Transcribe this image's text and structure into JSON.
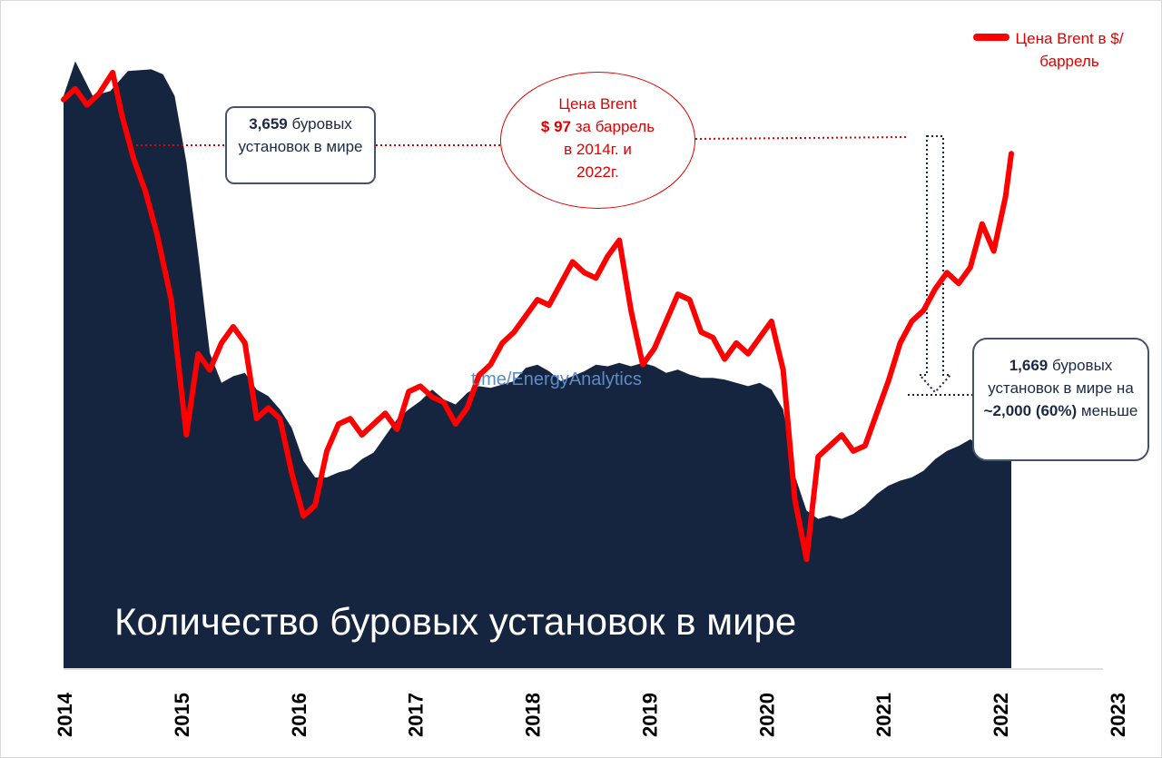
{
  "chart_data": {
    "type": "area+line",
    "title": "Количество буровых установок в мире",
    "watermark": "t.me/EnergyAnalytics",
    "x_ticks": [
      "2014",
      "2015",
      "2016",
      "2017",
      "2018",
      "2019",
      "2020",
      "2021",
      "2022",
      "2023"
    ],
    "xlim": [
      2014.0,
      2023.0
    ],
    "legend": {
      "label": "Цена Brent в $/баррель",
      "position": "top-right"
    },
    "series": [
      {
        "kind": "area",
        "color": "#15243f",
        "points": [
          [
            2014.0,
            3450
          ],
          [
            2014.1,
            3659
          ],
          [
            2014.25,
            3450
          ],
          [
            2014.4,
            3480
          ],
          [
            2014.55,
            3600
          ],
          [
            2014.75,
            3610
          ],
          [
            2014.85,
            3580
          ],
          [
            2014.95,
            3450
          ],
          [
            2015.05,
            3050
          ],
          [
            2015.15,
            2500
          ],
          [
            2015.25,
            1900
          ],
          [
            2015.35,
            1720
          ],
          [
            2015.45,
            1760
          ],
          [
            2015.55,
            1780
          ],
          [
            2015.65,
            1680
          ],
          [
            2015.75,
            1640
          ],
          [
            2015.85,
            1560
          ],
          [
            2015.95,
            1450
          ],
          [
            2016.05,
            1250
          ],
          [
            2016.15,
            1150
          ],
          [
            2016.25,
            1150
          ],
          [
            2016.35,
            1180
          ],
          [
            2016.45,
            1200
          ],
          [
            2016.55,
            1260
          ],
          [
            2016.65,
            1300
          ],
          [
            2016.75,
            1400
          ],
          [
            2016.85,
            1500
          ],
          [
            2016.95,
            1560
          ],
          [
            2017.05,
            1610
          ],
          [
            2017.15,
            1680
          ],
          [
            2017.25,
            1620
          ],
          [
            2017.35,
            1590
          ],
          [
            2017.45,
            1660
          ],
          [
            2017.55,
            1700
          ],
          [
            2017.65,
            1690
          ],
          [
            2017.75,
            1710
          ],
          [
            2017.85,
            1730
          ],
          [
            2017.95,
            1810
          ],
          [
            2018.05,
            1830
          ],
          [
            2018.15,
            1790
          ],
          [
            2018.25,
            1730
          ],
          [
            2018.35,
            1760
          ],
          [
            2018.45,
            1790
          ],
          [
            2018.55,
            1830
          ],
          [
            2018.65,
            1820
          ],
          [
            2018.75,
            1840
          ],
          [
            2018.85,
            1820
          ],
          [
            2018.95,
            1840
          ],
          [
            2019.05,
            1820
          ],
          [
            2019.15,
            1780
          ],
          [
            2019.25,
            1800
          ],
          [
            2019.35,
            1770
          ],
          [
            2019.45,
            1750
          ],
          [
            2019.55,
            1750
          ],
          [
            2019.65,
            1740
          ],
          [
            2019.75,
            1720
          ],
          [
            2019.85,
            1700
          ],
          [
            2019.95,
            1720
          ],
          [
            2020.05,
            1680
          ],
          [
            2020.15,
            1560
          ],
          [
            2020.25,
            1160
          ],
          [
            2020.35,
            950
          ],
          [
            2020.45,
            900
          ],
          [
            2020.55,
            920
          ],
          [
            2020.65,
            900
          ],
          [
            2020.75,
            930
          ],
          [
            2020.85,
            980
          ],
          [
            2020.95,
            1050
          ],
          [
            2021.05,
            1100
          ],
          [
            2021.15,
            1130
          ],
          [
            2021.25,
            1150
          ],
          [
            2021.35,
            1190
          ],
          [
            2021.45,
            1260
          ],
          [
            2021.55,
            1310
          ],
          [
            2021.65,
            1340
          ],
          [
            2021.75,
            1380
          ],
          [
            2021.85,
            1330
          ],
          [
            2021.95,
            1380
          ],
          [
            2022.05,
            1590
          ],
          [
            2022.1,
            1669
          ]
        ]
      },
      {
        "kind": "line",
        "name": "Цена Brent в $/баррель",
        "color": "#ff0000",
        "points": [
          [
            2014.0,
            107
          ],
          [
            2014.1,
            109
          ],
          [
            2014.2,
            106
          ],
          [
            2014.3,
            108
          ],
          [
            2014.42,
            112
          ],
          [
            2014.5,
            104
          ],
          [
            2014.6,
            96
          ],
          [
            2014.7,
            90
          ],
          [
            2014.8,
            82
          ],
          [
            2014.92,
            70
          ],
          [
            2015.05,
            45
          ],
          [
            2015.15,
            60
          ],
          [
            2015.25,
            57
          ],
          [
            2015.35,
            62
          ],
          [
            2015.45,
            65
          ],
          [
            2015.55,
            62
          ],
          [
            2015.65,
            48
          ],
          [
            2015.75,
            50
          ],
          [
            2015.85,
            48
          ],
          [
            2015.95,
            38
          ],
          [
            2016.05,
            30
          ],
          [
            2016.15,
            32
          ],
          [
            2016.25,
            42
          ],
          [
            2016.35,
            47
          ],
          [
            2016.45,
            48
          ],
          [
            2016.55,
            45
          ],
          [
            2016.65,
            47
          ],
          [
            2016.75,
            49
          ],
          [
            2016.85,
            46
          ],
          [
            2016.95,
            53
          ],
          [
            2017.05,
            54
          ],
          [
            2017.15,
            52
          ],
          [
            2017.25,
            51
          ],
          [
            2017.35,
            47
          ],
          [
            2017.45,
            50
          ],
          [
            2017.55,
            56
          ],
          [
            2017.65,
            58
          ],
          [
            2017.75,
            62
          ],
          [
            2017.85,
            64
          ],
          [
            2017.95,
            67
          ],
          [
            2018.05,
            70
          ],
          [
            2018.15,
            69
          ],
          [
            2018.25,
            73
          ],
          [
            2018.35,
            77
          ],
          [
            2018.45,
            75
          ],
          [
            2018.55,
            74
          ],
          [
            2018.65,
            78
          ],
          [
            2018.75,
            81
          ],
          [
            2018.85,
            68
          ],
          [
            2018.95,
            58
          ],
          [
            2019.05,
            61
          ],
          [
            2019.15,
            66
          ],
          [
            2019.25,
            71
          ],
          [
            2019.35,
            70
          ],
          [
            2019.45,
            64
          ],
          [
            2019.55,
            63
          ],
          [
            2019.65,
            59
          ],
          [
            2019.75,
            62
          ],
          [
            2019.85,
            60
          ],
          [
            2019.95,
            63
          ],
          [
            2020.05,
            66
          ],
          [
            2020.15,
            57
          ],
          [
            2020.25,
            33
          ],
          [
            2020.35,
            22
          ],
          [
            2020.45,
            41
          ],
          [
            2020.55,
            43
          ],
          [
            2020.65,
            45
          ],
          [
            2020.75,
            42
          ],
          [
            2020.85,
            43
          ],
          [
            2020.95,
            49
          ],
          [
            2021.05,
            55
          ],
          [
            2021.15,
            62
          ],
          [
            2021.25,
            66
          ],
          [
            2021.35,
            68
          ],
          [
            2021.45,
            72
          ],
          [
            2021.55,
            75
          ],
          [
            2021.65,
            73
          ],
          [
            2021.75,
            76
          ],
          [
            2021.85,
            84
          ],
          [
            2021.95,
            79
          ],
          [
            2022.05,
            89
          ],
          [
            2022.1,
            97
          ]
        ]
      }
    ],
    "rig_axis_hidden": [
      0,
      3700
    ],
    "price_axis_hidden": [
      20,
      115
    ]
  },
  "annotations": {
    "left_box": {
      "strong": "3,659",
      "rest": " буровых установок в мире"
    },
    "ellipse": {
      "line1": "Цена Brent",
      "strong": "$ 97",
      "line2": " за баррель",
      "line3": "в 2014г. и",
      "line4": "2022г."
    },
    "right_box": {
      "strong1": "1,669",
      "part1": " буровых установок в мире на ",
      "strong2": "~2,000 (60%)",
      "part2": " меньше"
    }
  }
}
